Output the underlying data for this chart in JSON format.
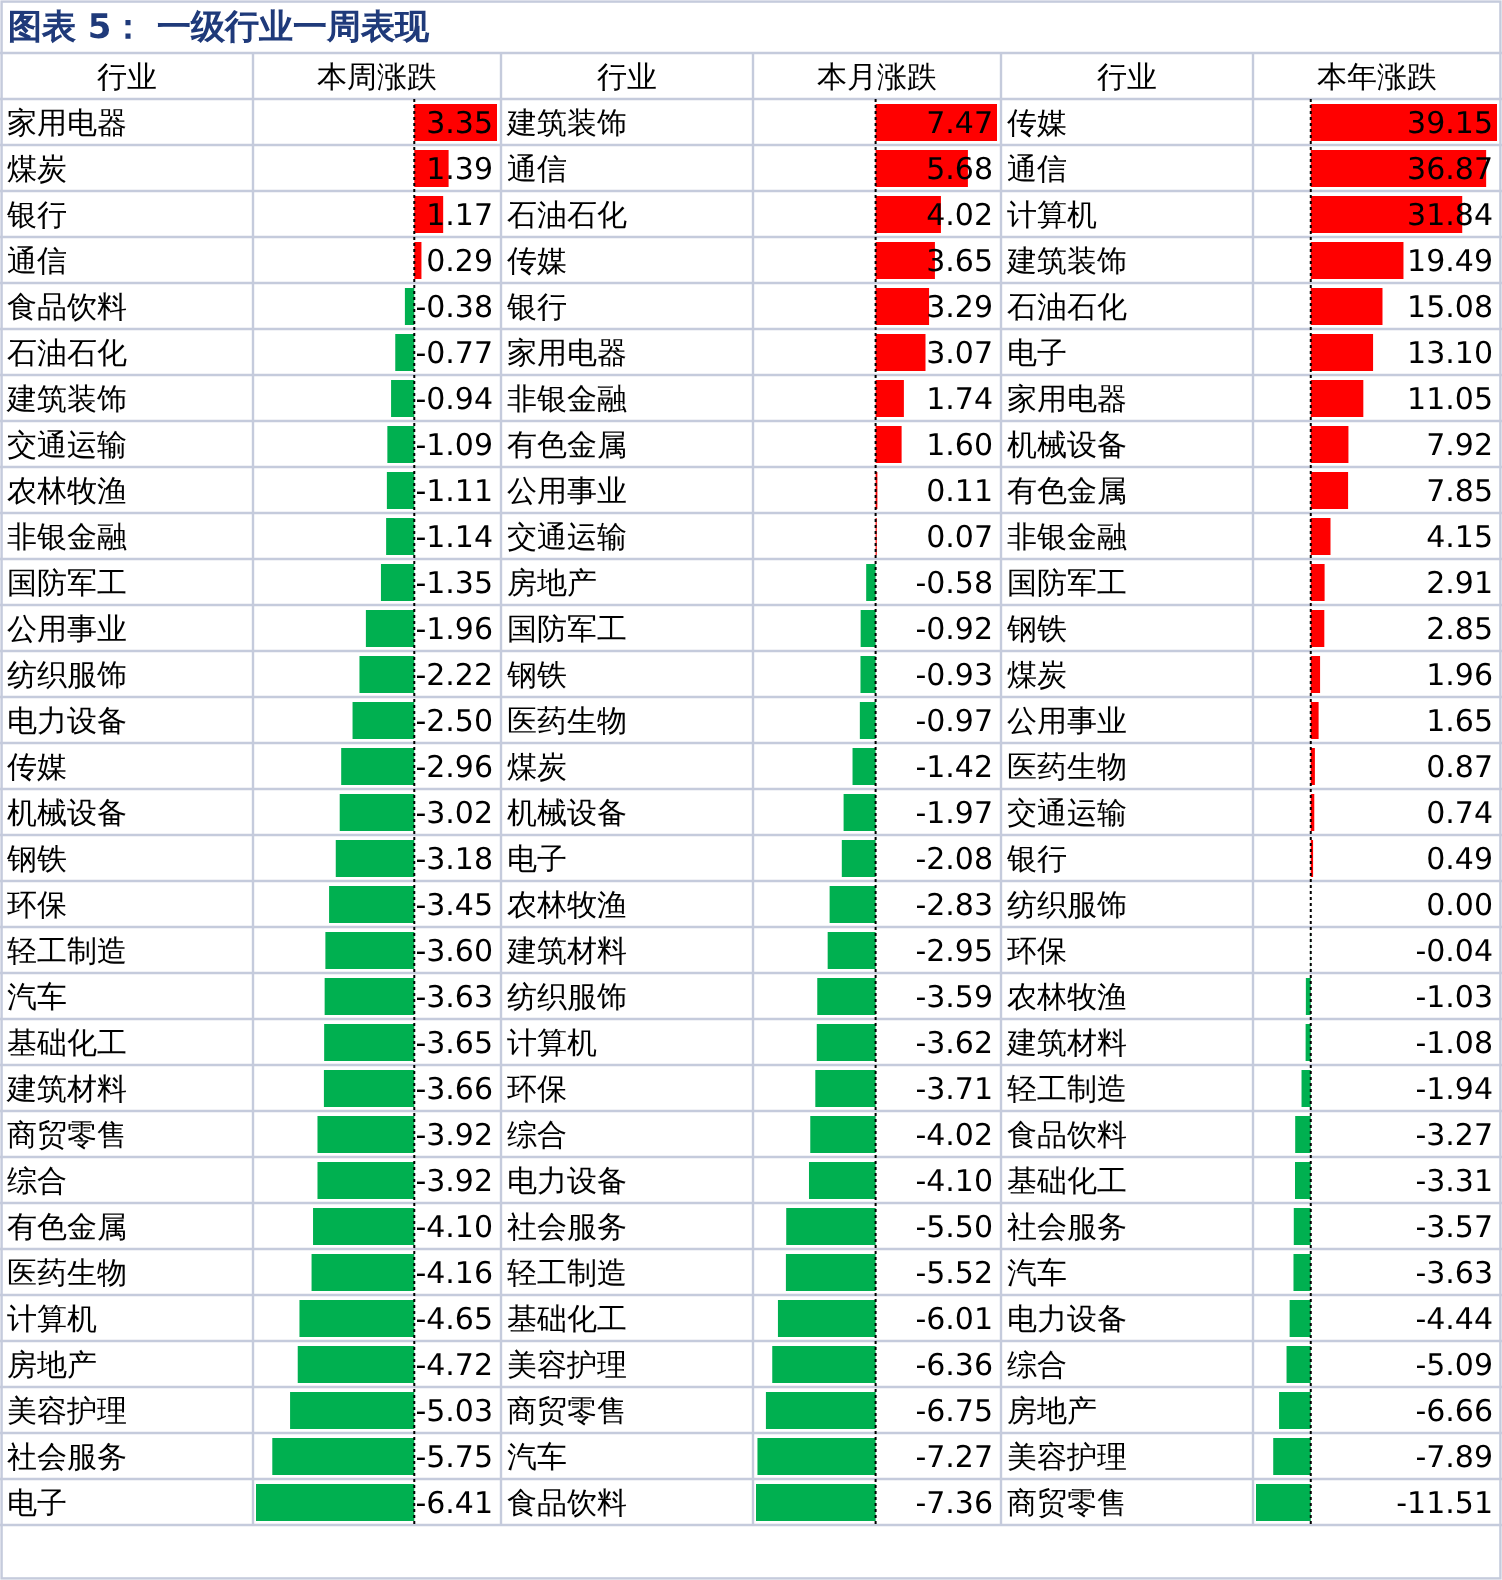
{
  "chart_data": [
    {
      "type": "bar",
      "orientation": "horizontal",
      "title": "图表 5： 一级行业一周表现",
      "ylabel": "行业",
      "xlabel": "本周涨跌",
      "tick_labels": "y",
      "categories": [
        "家用电器",
        "煤炭",
        "银行",
        "通信",
        "食品饮料",
        "石油石化",
        "建筑装饰",
        "交通运输",
        "农林牧渔",
        "非银金融",
        "国防军工",
        "公用事业",
        "纺织服饰",
        "电力设备",
        "传媒",
        "机械设备",
        "钢铁",
        "环保",
        "轻工制造",
        "汽车",
        "基础化工",
        "建筑材料",
        "商贸零售",
        "综合",
        "有色金属",
        "医药生物",
        "计算机",
        "房地产",
        "美容护理",
        "社会服务",
        "电子"
      ],
      "values": [
        3.35,
        1.39,
        1.17,
        0.29,
        -0.38,
        -0.77,
        -0.94,
        -1.09,
        -1.11,
        -1.14,
        -1.35,
        -1.96,
        -2.22,
        -2.5,
        -2.96,
        -3.02,
        -3.18,
        -3.45,
        -3.6,
        -3.63,
        -3.65,
        -3.66,
        -3.92,
        -3.92,
        -4.1,
        -4.16,
        -4.65,
        -4.72,
        -5.03,
        -5.75,
        -6.41
      ],
      "value_labels": [
        "3.35",
        "1.39",
        "1.17",
        "0.29",
        "-0.38",
        "-0.77",
        "-0.94",
        "-1.09",
        "-1.11",
        "-1.14",
        "-1.35",
        "-1.96",
        "-2.22",
        "-2.50",
        "-2.96",
        "-3.02",
        "-3.18",
        "-3.45",
        "-3.60",
        "-3.63",
        "-3.65",
        "-3.66",
        "-3.92",
        "-3.92",
        "-4.10",
        "-4.16",
        "-4.65",
        "-4.72",
        "-5.03",
        "-5.75",
        "-6.41"
      ],
      "colors": [
        "#ff0000",
        "#ff0000",
        "#ff0000",
        "#ff0000",
        "#00b050",
        "#00b050",
        "#00b050",
        "#00b050",
        "#00b050",
        "#00b050",
        "#00b050",
        "#00b050",
        "#00b050",
        "#00b050",
        "#00b050",
        "#00b050",
        "#00b050",
        "#00b050",
        "#00b050",
        "#00b050",
        "#00b050",
        "#00b050",
        "#00b050",
        "#00b050",
        "#00b050",
        "#00b050",
        "#00b050",
        "#00b050",
        "#00b050",
        "#00b050",
        "#00b050"
      ],
      "ref_lines": [
        {
          "axis": "x",
          "value": 0,
          "color": "#000000",
          "line_style": "dotted"
        }
      ]
    },
    {
      "type": "bar",
      "orientation": "horizontal",
      "ylabel": "行业",
      "xlabel": "本月涨跌",
      "tick_labels": "y",
      "categories": [
        "建筑装饰",
        "通信",
        "石油石化",
        "传媒",
        "银行",
        "家用电器",
        "非银金融",
        "有色金属",
        "公用事业",
        "交通运输",
        "房地产",
        "国防军工",
        "钢铁",
        "医药生物",
        "煤炭",
        "机械设备",
        "电子",
        "农林牧渔",
        "建筑材料",
        "纺织服饰",
        "计算机",
        "环保",
        "综合",
        "电力设备",
        "社会服务",
        "轻工制造",
        "基础化工",
        "美容护理",
        "商贸零售",
        "汽车",
        "食品饮料"
      ],
      "values": [
        7.47,
        5.68,
        4.02,
        3.65,
        3.29,
        3.07,
        1.74,
        1.6,
        0.11,
        0.07,
        -0.58,
        -0.92,
        -0.93,
        -0.97,
        -1.42,
        -1.97,
        -2.08,
        -2.83,
        -2.95,
        -3.59,
        -3.62,
        -3.71,
        -4.02,
        -4.1,
        -5.5,
        -5.52,
        -6.01,
        -6.36,
        -6.75,
        -7.27,
        -7.36
      ],
      "value_labels": [
        "7.47",
        "5.68",
        "4.02",
        "3.65",
        "3.29",
        "3.07",
        "1.74",
        "1.60",
        "0.11",
        "0.07",
        "-0.58",
        "-0.92",
        "-0.93",
        "-0.97",
        "-1.42",
        "-1.97",
        "-2.08",
        "-2.83",
        "-2.95",
        "-3.59",
        "-3.62",
        "-3.71",
        "-4.02",
        "-4.10",
        "-5.50",
        "-5.52",
        "-6.01",
        "-6.36",
        "-6.75",
        "-7.27",
        "-7.36"
      ],
      "colors": [
        "#ff0000",
        "#ff0000",
        "#ff0000",
        "#ff0000",
        "#ff0000",
        "#ff0000",
        "#ff0000",
        "#ff0000",
        "#ff0000",
        "#ff0000",
        "#00b050",
        "#00b050",
        "#00b050",
        "#00b050",
        "#00b050",
        "#00b050",
        "#00b050",
        "#00b050",
        "#00b050",
        "#00b050",
        "#00b050",
        "#00b050",
        "#00b050",
        "#00b050",
        "#00b050",
        "#00b050",
        "#00b050",
        "#00b050",
        "#00b050",
        "#00b050",
        "#00b050"
      ],
      "ref_lines": [
        {
          "axis": "x",
          "value": 0,
          "color": "#000000",
          "line_style": "dotted"
        }
      ]
    },
    {
      "type": "bar",
      "orientation": "horizontal",
      "ylabel": "行业",
      "xlabel": "本年涨跌",
      "tick_labels": "y",
      "categories": [
        "传媒",
        "通信",
        "计算机",
        "建筑装饰",
        "石油石化",
        "电子",
        "家用电器",
        "机械设备",
        "有色金属",
        "非银金融",
        "国防军工",
        "钢铁",
        "煤炭",
        "公用事业",
        "医药生物",
        "交通运输",
        "银行",
        "纺织服饰",
        "环保",
        "农林牧渔",
        "建筑材料",
        "轻工制造",
        "食品饮料",
        "基础化工",
        "社会服务",
        "汽车",
        "电力设备",
        "综合",
        "房地产",
        "美容护理",
        "商贸零售"
      ],
      "values": [
        39.15,
        36.87,
        31.84,
        19.49,
        15.08,
        13.1,
        11.05,
        7.92,
        7.85,
        4.15,
        2.91,
        2.85,
        1.96,
        1.65,
        0.87,
        0.74,
        0.49,
        0.0,
        -0.04,
        -1.03,
        -1.08,
        -1.94,
        -3.27,
        -3.31,
        -3.57,
        -3.63,
        -4.44,
        -5.09,
        -6.66,
        -7.89,
        -11.51
      ],
      "value_labels": [
        "39.15",
        "36.87",
        "31.84",
        "19.49",
        "15.08",
        "13.10",
        "11.05",
        "7.92",
        "7.85",
        "4.15",
        "2.91",
        "2.85",
        "1.96",
        "1.65",
        "0.87",
        "0.74",
        "0.49",
        "0.00",
        "-0.04",
        "-1.03",
        "-1.08",
        "-1.94",
        "-3.27",
        "-3.31",
        "-3.57",
        "-3.63",
        "-4.44",
        "-5.09",
        "-6.66",
        "-7.89",
        "-11.51"
      ],
      "colors": [
        "#ff0000",
        "#ff0000",
        "#ff0000",
        "#ff0000",
        "#ff0000",
        "#ff0000",
        "#ff0000",
        "#ff0000",
        "#ff0000",
        "#ff0000",
        "#ff0000",
        "#ff0000",
        "#ff0000",
        "#ff0000",
        "#ff0000",
        "#ff0000",
        "#ff0000",
        "#ff0000",
        "#00b050",
        "#00b050",
        "#00b050",
        "#00b050",
        "#00b050",
        "#00b050",
        "#00b050",
        "#00b050",
        "#00b050",
        "#00b050",
        "#00b050",
        "#00b050",
        "#00b050"
      ],
      "ref_lines": [
        {
          "axis": "x",
          "value": 0,
          "color": "#000000",
          "line_style": "dotted"
        }
      ]
    }
  ]
}
